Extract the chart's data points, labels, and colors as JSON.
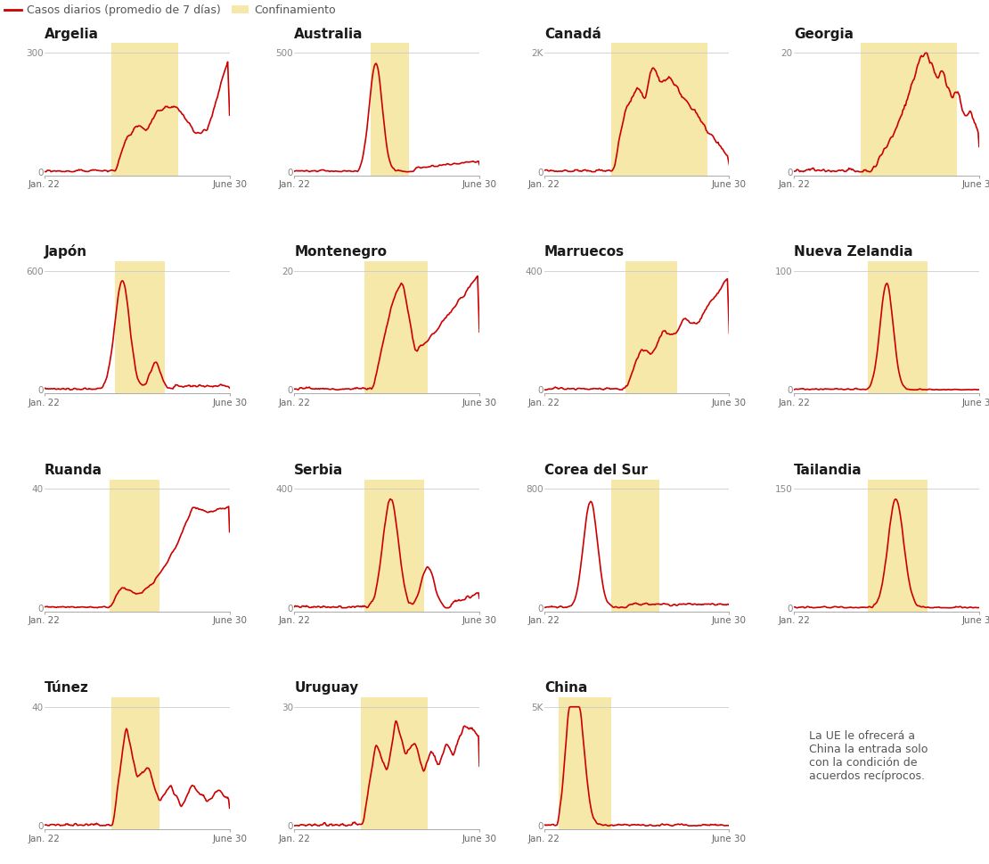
{
  "title_legend_line": "Casos diarios (promedio de 7 días)",
  "title_legend_shade": "Confinamiento",
  "line_color": "#cc0000",
  "shade_color": "#f5e8a8",
  "background_color": "#ffffff",
  "title_fontsize": 11,
  "tick_fontsize": 7.5,
  "legend_fontsize": 9,
  "countries": [
    "Argelia",
    "Australia",
    "Canadá",
    "Georgia",
    "Japón",
    "Montenegro",
    "Marruecos",
    "Nueva Zelandia",
    "Ruanda",
    "Serbia",
    "Corea del Sur",
    "Tailandia",
    "Túnez",
    "Uruguay",
    "China",
    ""
  ],
  "ylabels": [
    "300",
    "500",
    "2K",
    "20",
    "600",
    "20",
    "400",
    "100",
    "40",
    "400",
    "800",
    "150",
    "40",
    "30",
    "5K",
    ""
  ],
  "china_note": "La UE le ofrecerá a\nChina la entrada solo\ncon la condición de\nacuerdos recíprocos.",
  "n_points": 200
}
